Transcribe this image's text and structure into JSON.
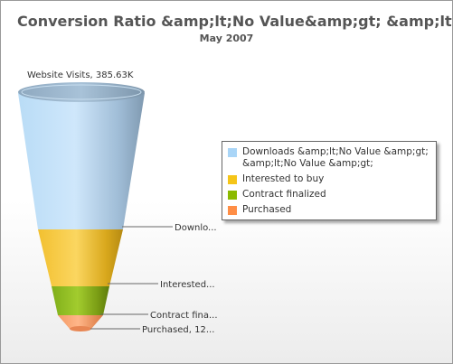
{
  "chart": {
    "title": "Conversion Ratio &amp;lt;No Value&amp;gt; &amp;lt;No Valu...",
    "subtitle": "May 2007",
    "legend": [
      {
        "label": "Downloads &amp;lt;No Value &amp;gt; &amp;lt;No Value &amp;gt;",
        "color": "#a9d5f7"
      },
      {
        "label": "Interested to buy",
        "color": "#f5c518"
      },
      {
        "label": "Contract finalized",
        "color": "#8bba00"
      },
      {
        "label": "Purchased",
        "color": "#ff8e46"
      }
    ]
  },
  "chart_data": {
    "type": "funnel",
    "title": "Conversion Ratio &amp;lt;No Value&amp;gt; &amp;lt;No Valu...",
    "subtitle": "May 2007",
    "legend_position": "right",
    "stages": [
      {
        "name": "Website Visits",
        "label": "Website Visits, 385.63K",
        "display_label": "Website Visits, 385.63K",
        "value": 385630,
        "color": "#a9d5f7"
      },
      {
        "name": "Downloads &amp;lt;No Value &amp;gt; &amp;lt;No Value &amp;gt;",
        "label": "Downlo...",
        "display_label": "Downlo...",
        "value": 175000,
        "color": "#f5c518"
      },
      {
        "name": "Interested to buy",
        "label": "Interested...",
        "display_label": "Interested...",
        "value": 82000,
        "color": "#8bba00"
      },
      {
        "name": "Contract finalized",
        "label": "Contract fina...",
        "display_label": "Contract fina...",
        "value": 30000,
        "color": "#ff8e46"
      },
      {
        "name": "Purchased",
        "label": "Purchased, 12...",
        "display_label": "Purchased, 12...",
        "value": 12000,
        "color": "#ff8e46"
      }
    ]
  }
}
